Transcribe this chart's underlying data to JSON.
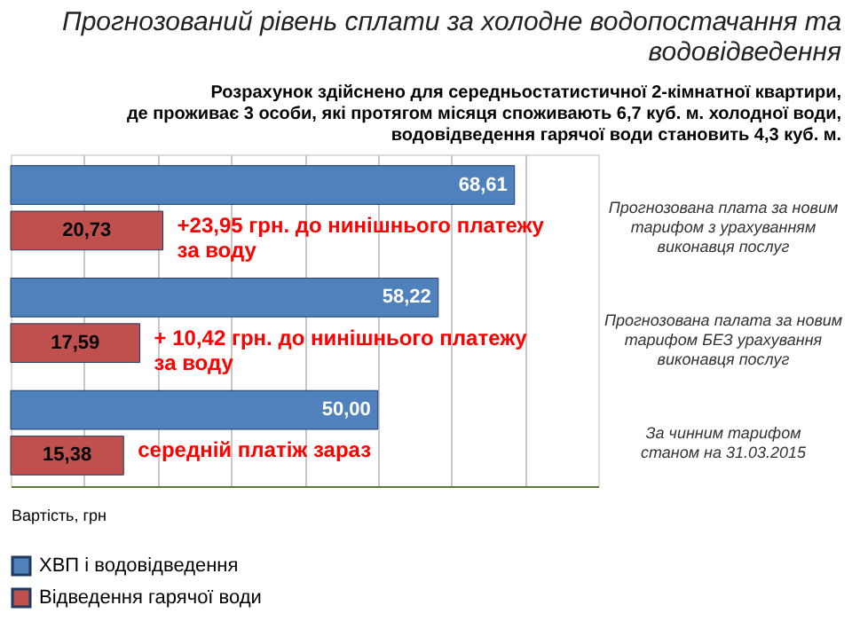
{
  "chart_data": {
    "type": "bar",
    "orientation": "horizontal",
    "title": [
      "Прогнозований рівень сплати за холодне водопостачання та",
      "водовідведення"
    ],
    "subtitle": [
      "Розрахунок здійснено для середньостатистичної 2-кімнатної квартири,",
      "де проживає 3 особи, які протягом місяця споживають 6,7 куб. м. холодної води,",
      "водовідведення гарячої води становить 4,3 куб. м."
    ],
    "xlabel": "Вартість, грн",
    "categories": [
      "Прогнозована плата за новим\nтарифом з урахуванням\nвиконавця послуг",
      "Прогнозована палата за новим\nтарифом БЕЗ урахування\nвиконавця послуг",
      "За чинним тарифом\nстаном на 31.03.2015"
    ],
    "series": [
      {
        "name": "ХВП і водовідведення",
        "color": "#4f81bd",
        "values": [
          68.61,
          58.22,
          50.0
        ],
        "value_labels": [
          "68,61",
          "58,22",
          "50,00"
        ]
      },
      {
        "name": "Відведення гарячої води",
        "color": "#c0504d",
        "values": [
          20.73,
          17.59,
          15.38
        ],
        "value_labels": [
          "20,73",
          "17,59",
          "15,38"
        ]
      }
    ],
    "annotations": [
      "+23,95 грн. до нинішнього платежу\nза воду",
      "+ 10,42 грн. до нинішнього платежу\nза воду",
      "середній платіж зараз"
    ],
    "xlim": [
      0,
      80
    ],
    "xticks": [
      {
        "value": 10,
        "label": null
      },
      {
        "value": 20,
        "label": null
      },
      {
        "value": 30,
        "label": null
      },
      {
        "value": 40,
        "label": null
      },
      {
        "value": 50,
        "label": null
      },
      {
        "value": 60,
        "label": null
      },
      {
        "value": 70,
        "label": null
      }
    ],
    "grid": "x",
    "tick_labels": "y",
    "legend": "bottom"
  }
}
